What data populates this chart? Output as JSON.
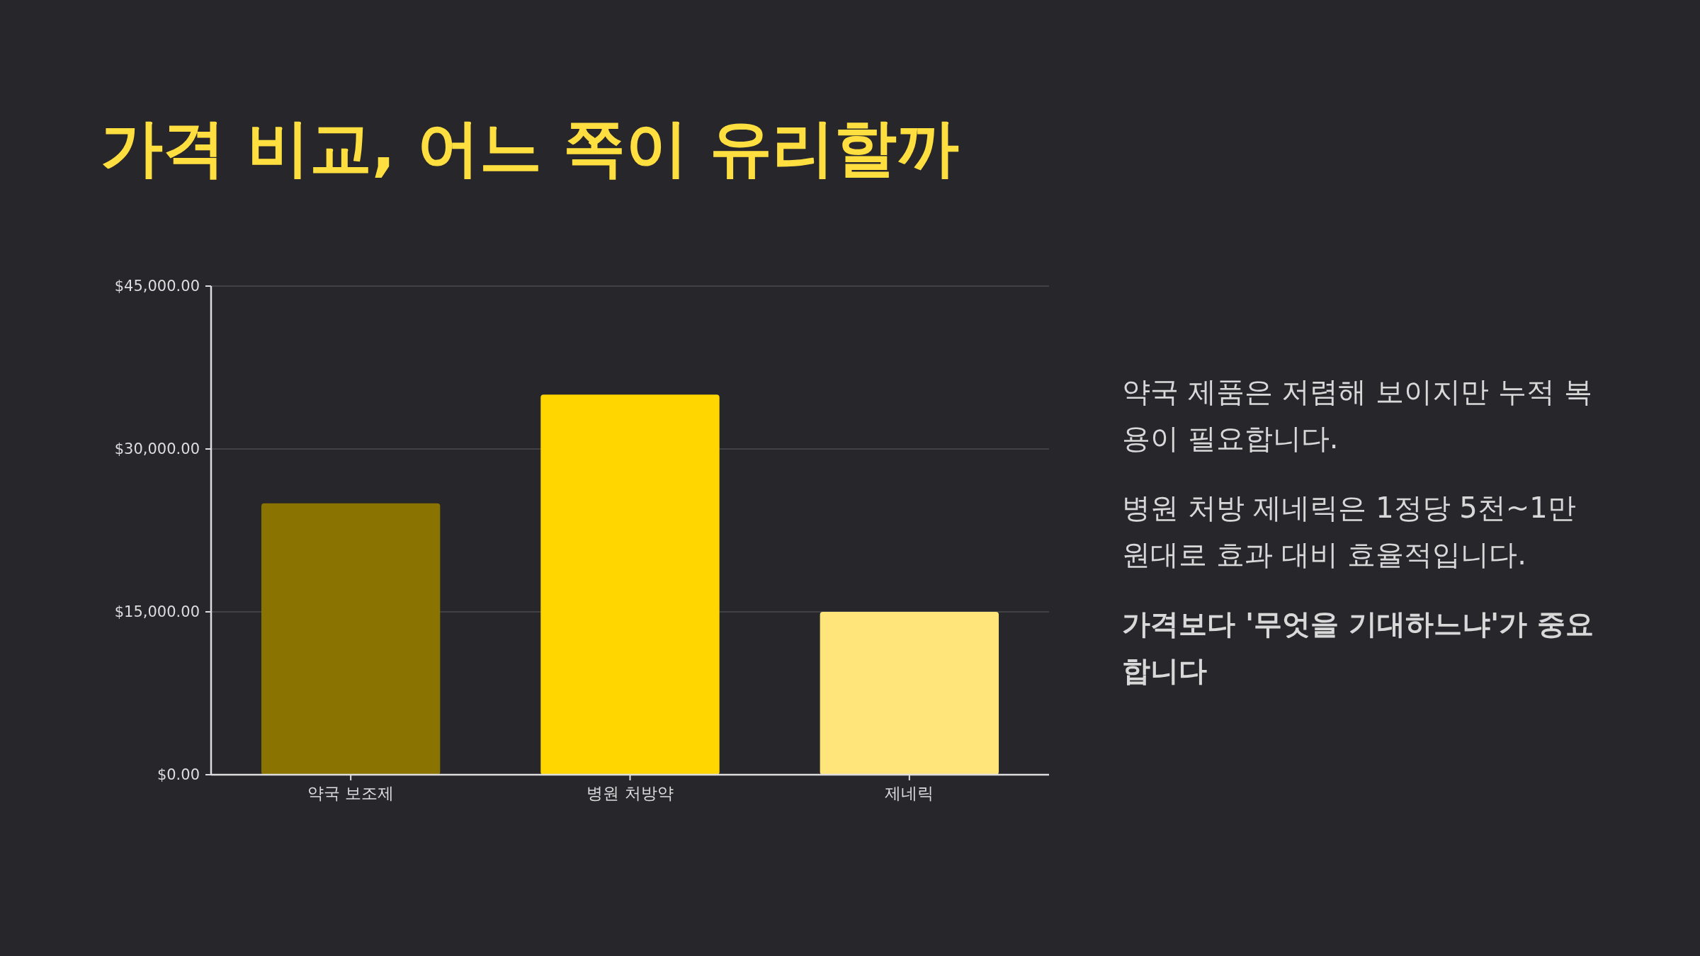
{
  "chart_data": {
    "type": "bar",
    "title": "가격 비교, 어느 쪽이 유리할까",
    "categories": [
      "약국 보조제",
      "병원 처방약",
      "제네릭"
    ],
    "values": [
      25000,
      35000,
      15000
    ],
    "colors": [
      "#8a7300",
      "#ffd600",
      "#ffe57a"
    ],
    "ylim": [
      0,
      45000
    ],
    "yticks": [
      {
        "value": 0,
        "label": "$0.00"
      },
      {
        "value": 15000,
        "label": "$15,000.00"
      },
      {
        "value": 30000,
        "label": "$30,000.00"
      },
      {
        "value": 45000,
        "label": "$45,000.00"
      }
    ],
    "grid": "y",
    "annotations": [
      "약국 제품은 저렴해 보이지만 누적 복용이 필요합니다.",
      "병원 처방 제네릭은 1정당 5천~1만 원대로 효과 대비 효율적입니다.",
      "가격보다 '무엇을 기대하느냐'가 중요합니다"
    ]
  }
}
